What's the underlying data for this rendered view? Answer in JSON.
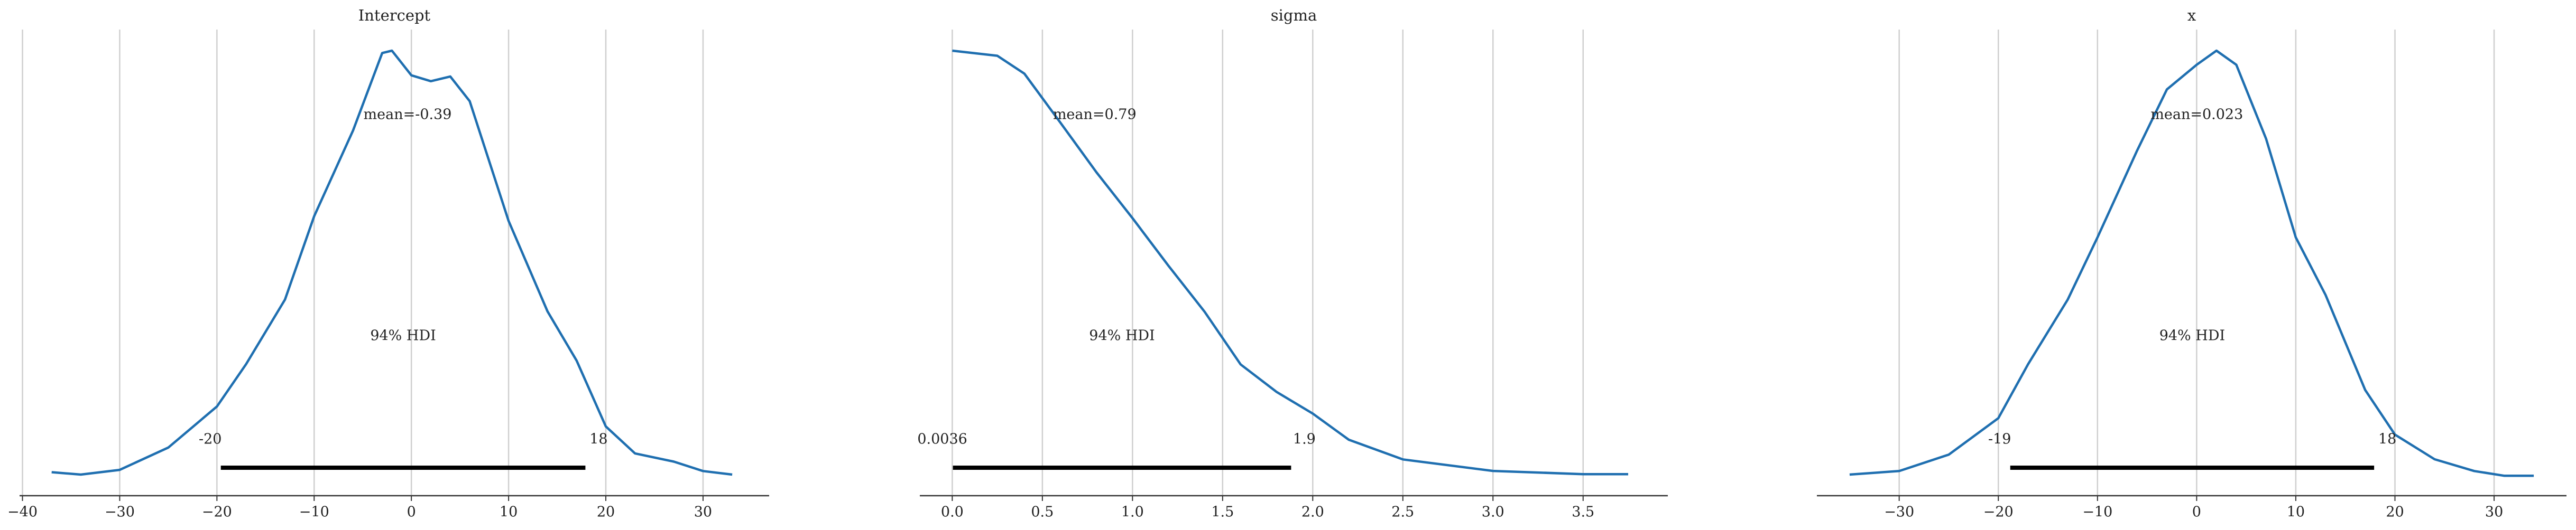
{
  "chart_data": [
    {
      "type": "density",
      "title": "Intercept",
      "x": [
        -37,
        -34,
        -30,
        -25,
        -20,
        -17,
        -13,
        -10,
        -6,
        -3,
        -2,
        0,
        2,
        4,
        6,
        10,
        14,
        17,
        20,
        23,
        27,
        30,
        33
      ],
      "values": [
        0.002,
        0.0018,
        0.0022,
        0.0041,
        0.0076,
        0.0112,
        0.0167,
        0.0238,
        0.0311,
        0.0377,
        0.0379,
        0.0358,
        0.0353,
        0.0357,
        0.0336,
        0.0234,
        0.0157,
        0.0115,
        0.0059,
        0.0036,
        0.0029,
        0.0021,
        0.0018
      ],
      "color": "#1f6fb0",
      "mean": -0.39,
      "mean_label": "mean=-0.39",
      "hdi_label": "94% HDI",
      "hdi": [
        -19.6,
        17.9
      ],
      "hdi_labels": [
        "-20",
        "18"
      ],
      "xlim": [
        -40.3,
        36.8
      ],
      "xticks": [
        {
          "value": -40,
          "label": "−40"
        },
        {
          "value": -30,
          "label": "−30"
        },
        {
          "value": -20,
          "label": "−20"
        },
        {
          "value": -10,
          "label": "−10"
        },
        0,
        10,
        20,
        30
      ],
      "grid": true
    },
    {
      "type": "density",
      "title": "sigma",
      "x": [
        0,
        0.25,
        0.4,
        0.6,
        0.8,
        1.0,
        1.2,
        1.4,
        1.6,
        1.8,
        2.0,
        2.2,
        2.5,
        3.0,
        3.5,
        3.75
      ],
      "values": [
        0.97,
        0.959,
        0.92,
        0.813,
        0.705,
        0.605,
        0.501,
        0.401,
        0.286,
        0.226,
        0.179,
        0.122,
        0.079,
        0.054,
        0.047,
        0.047
      ],
      "color": "#1f6fb0",
      "mean": 0.79,
      "mean_label": "mean=0.79",
      "hdi_label": "94% HDI",
      "hdi": [
        0.0036,
        1.88
      ],
      "hdi_labels": [
        "0.0036",
        "1.9"
      ],
      "xlim": [
        -0.18,
        3.97
      ],
      "xticks": [
        {
          "value": 0,
          "label": "0.0"
        },
        0.5,
        {
          "value": 1,
          "label": "1.0"
        },
        1.5,
        {
          "value": 2,
          "label": "2.0"
        },
        2.5,
        {
          "value": 3,
          "label": "3.0"
        },
        3.5
      ],
      "grid": true
    },
    {
      "type": "density",
      "title": "x",
      "x": [
        -35,
        -30,
        -25,
        -20,
        -17,
        -13,
        -10,
        -6,
        -3,
        0,
        2,
        4,
        7,
        10,
        13,
        17,
        20,
        24,
        28,
        31,
        34
      ],
      "values": [
        0.0018,
        0.0021,
        0.0035,
        0.0066,
        0.0112,
        0.0167,
        0.022,
        0.0294,
        0.0346,
        0.0367,
        0.0379,
        0.0367,
        0.0304,
        0.022,
        0.0171,
        0.009,
        0.0052,
        0.0031,
        0.0021,
        0.0017,
        0.0017
      ],
      "color": "#1f6fb0",
      "mean": 0.023,
      "mean_label": "mean=0.023",
      "hdi_label": "94% HDI",
      "hdi": [
        -18.8,
        17.9
      ],
      "hdi_labels": [
        "-19",
        "18"
      ],
      "xlim": [
        -38.3,
        37.3
      ],
      "xticks": [
        {
          "value": -30,
          "label": "−30"
        },
        {
          "value": -20,
          "label": "−20"
        },
        {
          "value": -10,
          "label": "−10"
        },
        0,
        10,
        20,
        30
      ],
      "grid": true
    }
  ]
}
